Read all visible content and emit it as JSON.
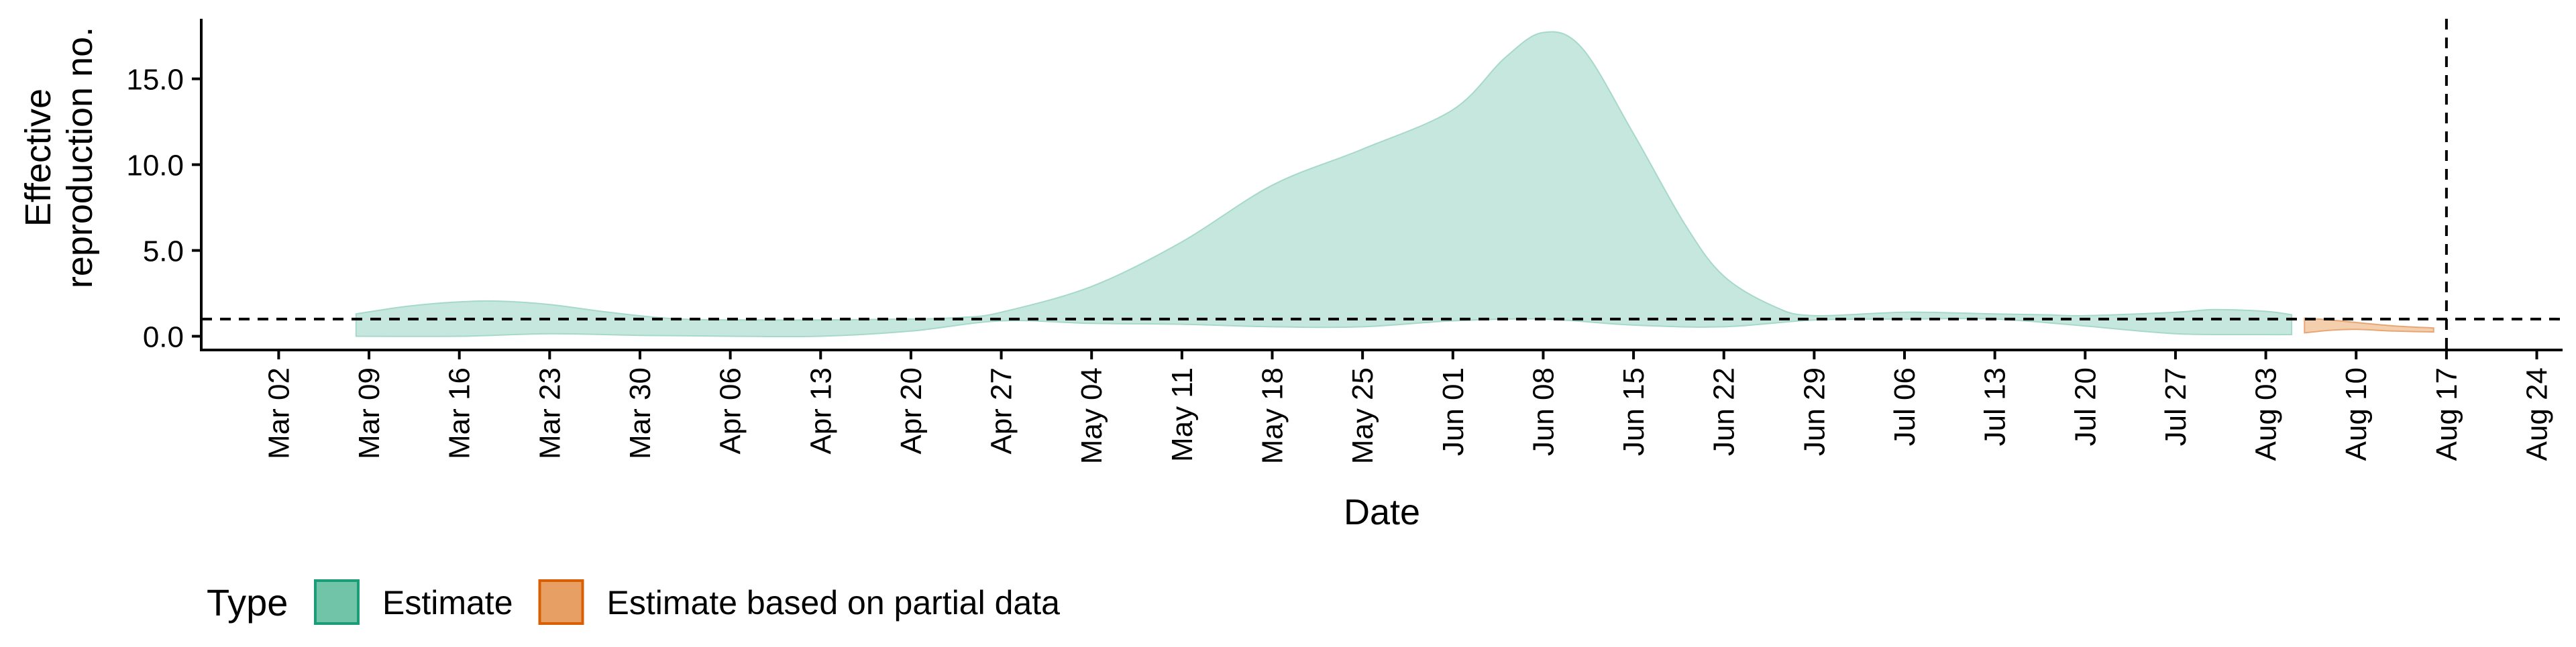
{
  "chart_data": {
    "type": "area",
    "title": "",
    "xlabel": "Date",
    "ylabel": "Effective reproduction no.",
    "ylabel_lines": [
      "Effective",
      "reproduction no."
    ],
    "xlim": [
      "2020-02-25",
      "2020-08-26"
    ],
    "ylim": [
      -0.8,
      18.5
    ],
    "x_ticks": [
      "2020-03-02",
      "2020-03-09",
      "2020-03-16",
      "2020-03-23",
      "2020-03-30",
      "2020-04-06",
      "2020-04-13",
      "2020-04-20",
      "2020-04-27",
      "2020-05-04",
      "2020-05-11",
      "2020-05-18",
      "2020-05-25",
      "2020-06-01",
      "2020-06-08",
      "2020-06-15",
      "2020-06-22",
      "2020-06-29",
      "2020-07-06",
      "2020-07-13",
      "2020-07-20",
      "2020-07-27",
      "2020-08-03",
      "2020-08-10",
      "2020-08-17",
      "2020-08-24"
    ],
    "x_tick_labels": [
      "Mar 02",
      "Mar 09",
      "Mar 16",
      "Mar 23",
      "Mar 30",
      "Apr 06",
      "Apr 13",
      "Apr 20",
      "Apr 27",
      "May 04",
      "May 11",
      "May 18",
      "May 25",
      "Jun 01",
      "Jun 08",
      "Jun 15",
      "Jun 22",
      "Jun 29",
      "Jul 06",
      "Jul 13",
      "Jul 20",
      "Jul 27",
      "Aug 03",
      "Aug 10",
      "Aug 17",
      "Aug 24"
    ],
    "y_ticks": [
      0,
      5,
      10,
      15
    ],
    "y_tick_labels": [
      "0.0",
      "5.0",
      "10.0",
      "15.0"
    ],
    "grid": false,
    "legend_position": "bottom-left",
    "legend_title": "Type",
    "reference_lines": {
      "horizontal_y": 1,
      "vertical_x": "2020-08-17"
    },
    "series": [
      {
        "name": "Estimate",
        "fill": "#c5e7dd",
        "stroke": "#a6d9c9",
        "legend_fill": "#72c4a8",
        "legend_stroke": "#1b9e77",
        "upper": [
          [
            "2020-03-08",
            1.3
          ],
          [
            "2020-03-12",
            1.75
          ],
          [
            "2020-03-16",
            2.0
          ],
          [
            "2020-03-19",
            2.05
          ],
          [
            "2020-03-23",
            1.85
          ],
          [
            "2020-03-27",
            1.45
          ],
          [
            "2020-04-01",
            1.05
          ],
          [
            "2020-04-06",
            0.95
          ],
          [
            "2020-04-13",
            0.95
          ],
          [
            "2020-04-20",
            1.0
          ],
          [
            "2020-04-24",
            1.1
          ],
          [
            "2020-04-27",
            1.4
          ],
          [
            "2020-05-04",
            2.9
          ],
          [
            "2020-05-11",
            5.5
          ],
          [
            "2020-05-18",
            8.8
          ],
          [
            "2020-05-25",
            10.9
          ],
          [
            "2020-06-01",
            13.2
          ],
          [
            "2020-06-05",
            16.2
          ],
          [
            "2020-06-08",
            17.7
          ],
          [
            "2020-06-11",
            16.8
          ],
          [
            "2020-06-15",
            11.8
          ],
          [
            "2020-06-19",
            6.5
          ],
          [
            "2020-06-22",
            3.5
          ],
          [
            "2020-06-26",
            1.7
          ],
          [
            "2020-06-29",
            1.2
          ],
          [
            "2020-07-06",
            1.4
          ],
          [
            "2020-07-13",
            1.3
          ],
          [
            "2020-07-17",
            1.25
          ],
          [
            "2020-07-20",
            1.2
          ],
          [
            "2020-07-27",
            1.4
          ],
          [
            "2020-07-30",
            1.55
          ],
          [
            "2020-08-03",
            1.45
          ],
          [
            "2020-08-05",
            1.25
          ]
        ],
        "lower": [
          [
            "2020-08-05",
            0.1
          ],
          [
            "2020-08-03",
            0.1
          ],
          [
            "2020-07-27",
            0.15
          ],
          [
            "2020-07-20",
            0.6
          ],
          [
            "2020-07-13",
            1.0
          ],
          [
            "2020-07-06",
            1.0
          ],
          [
            "2020-06-29",
            0.95
          ],
          [
            "2020-06-22",
            0.55
          ],
          [
            "2020-06-15",
            0.65
          ],
          [
            "2020-06-08",
            1.0
          ],
          [
            "2020-06-01",
            0.9
          ],
          [
            "2020-05-25",
            0.55
          ],
          [
            "2020-05-18",
            0.55
          ],
          [
            "2020-05-11",
            0.7
          ],
          [
            "2020-05-04",
            0.75
          ],
          [
            "2020-04-27",
            0.9
          ],
          [
            "2020-04-20",
            0.3
          ],
          [
            "2020-04-13",
            0.0
          ],
          [
            "2020-04-06",
            0.0
          ],
          [
            "2020-03-30",
            0.05
          ],
          [
            "2020-03-23",
            0.15
          ],
          [
            "2020-03-16",
            0.0
          ],
          [
            "2020-03-08",
            0.0
          ]
        ]
      },
      {
        "name": "Estimate based on partial data",
        "fill": "#f3cfae",
        "stroke": "#e8a674",
        "legend_fill": "#e89f63",
        "legend_stroke": "#d95f02",
        "upper": [
          [
            "2020-08-06",
            1.05
          ],
          [
            "2020-08-08",
            0.95
          ],
          [
            "2020-08-10",
            0.8
          ],
          [
            "2020-08-13",
            0.6
          ],
          [
            "2020-08-16",
            0.48
          ]
        ],
        "lower": [
          [
            "2020-08-16",
            0.25
          ],
          [
            "2020-08-13",
            0.3
          ],
          [
            "2020-08-10",
            0.4
          ],
          [
            "2020-08-08",
            0.35
          ],
          [
            "2020-08-06",
            0.2
          ]
        ]
      }
    ]
  }
}
